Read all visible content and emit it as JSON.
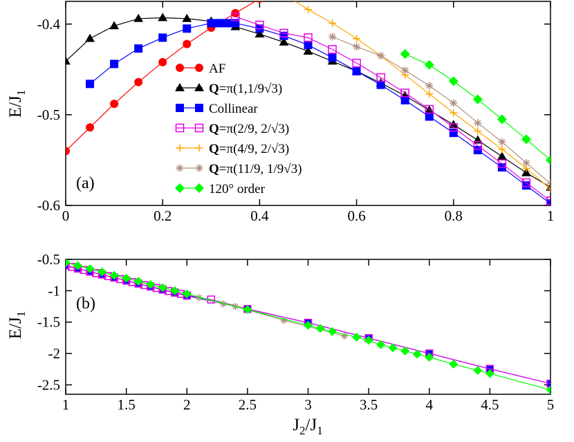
{
  "chart_data": [
    {
      "type": "line",
      "panel_label": "(a)",
      "xlabel": "",
      "ylabel_main": "E/J",
      "ylabel_sub": "1",
      "xlim": [
        0,
        1
      ],
      "ylim": [
        -0.6,
        -0.375
      ],
      "xticks": [
        0,
        0.2,
        0.4,
        0.6,
        0.8,
        1
      ],
      "xtick_labels": [
        "0",
        "0.2",
        "0.4",
        "0.6",
        "0.8",
        "1"
      ],
      "yticks": [
        -0.4,
        -0.5,
        -0.6
      ],
      "ytick_labels": [
        "-0.4",
        "-0.5",
        "-0.6"
      ],
      "legend_placement": "center-left",
      "series": [
        {
          "id": "af",
          "label_bold": "",
          "label_rest": "AF",
          "color": "#ff0000",
          "marker": "circle",
          "fill": true,
          "x": [
            0,
            0.05,
            0.1,
            0.15,
            0.2,
            0.25,
            0.3,
            0.35,
            0.4
          ],
          "y": [
            -0.54,
            -0.514,
            -0.488,
            -0.464,
            -0.442,
            -0.422,
            -0.404,
            -0.388,
            -0.372
          ]
        },
        {
          "id": "q1",
          "label_bold": "Q",
          "label_rest": "=π(1,1/9√3)",
          "color": "#000000",
          "marker": "triangle",
          "fill": true,
          "x": [
            0,
            0.05,
            0.1,
            0.15,
            0.2,
            0.25,
            0.3,
            0.35,
            0.4,
            0.45,
            0.5,
            0.55,
            0.6,
            0.65,
            0.7,
            0.75,
            0.8,
            0.85,
            0.9,
            0.95,
            1
          ],
          "y": [
            -0.441,
            -0.416,
            -0.402,
            -0.394,
            -0.393,
            -0.394,
            -0.397,
            -0.403,
            -0.411,
            -0.42,
            -0.43,
            -0.441,
            -0.452,
            -0.465,
            -0.479,
            -0.495,
            -0.511,
            -0.528,
            -0.546,
            -0.564,
            -0.58
          ]
        },
        {
          "id": "collinear",
          "label_bold": "",
          "label_rest": "Collinear",
          "color": "#0000ff",
          "marker": "square",
          "fill": true,
          "x": [
            0.05,
            0.1,
            0.15,
            0.2,
            0.25,
            0.3,
            0.31,
            0.32,
            0.33,
            0.34,
            0.35,
            0.4,
            0.45,
            0.5,
            0.55,
            0.6,
            0.65,
            0.7,
            0.75,
            0.8,
            0.85,
            0.9,
            0.95,
            1
          ],
          "y": [
            -0.466,
            -0.444,
            -0.427,
            -0.415,
            -0.405,
            -0.399,
            -0.399,
            -0.399,
            -0.399,
            -0.399,
            -0.399,
            -0.405,
            -0.413,
            -0.423,
            -0.437,
            -0.452,
            -0.467,
            -0.484,
            -0.502,
            -0.52,
            -0.539,
            -0.558,
            -0.578,
            -0.598
          ]
        },
        {
          "id": "q2",
          "label_bold": "Q",
          "label_rest": "=π(2/9, 2/√3)",
          "color": "#e600e6",
          "marker": "square-open",
          "fill": false,
          "x": [
            0.35,
            0.4,
            0.45,
            0.5,
            0.55,
            0.6,
            0.65,
            0.7,
            0.75,
            0.8,
            0.85,
            0.9,
            0.95,
            1
          ],
          "y": [
            -0.392,
            -0.401,
            -0.41,
            -0.415,
            -0.428,
            -0.443,
            -0.459,
            -0.476,
            -0.494,
            -0.514,
            -0.534,
            -0.554,
            -0.575,
            -0.595
          ]
        },
        {
          "id": "q3",
          "label_bold": "Q",
          "label_rest": "=π(4/9, 2/√3)",
          "color": "#ffa500",
          "marker": "plus",
          "fill": false,
          "x": [
            0.45,
            0.5,
            0.55,
            0.6,
            0.65,
            0.7,
            0.75,
            0.8,
            0.85,
            0.9,
            0.95,
            1
          ],
          "y": [
            -0.367,
            -0.384,
            -0.399,
            -0.416,
            -0.435,
            -0.456,
            -0.477,
            -0.498,
            -0.518,
            -0.538,
            -0.559,
            -0.582
          ]
        },
        {
          "id": "q4",
          "label_bold": "Q",
          "label_rest": "=π(11/9, 1/9√3)",
          "color": "#b09080",
          "marker": "star",
          "fill": false,
          "x": [
            0.55,
            0.6,
            0.65,
            0.7,
            0.75,
            0.8,
            0.85,
            0.9,
            0.95,
            1
          ],
          "y": [
            -0.414,
            -0.425,
            -0.435,
            -0.451,
            -0.468,
            -0.487,
            -0.509,
            -0.53,
            -0.553,
            -0.576
          ]
        },
        {
          "id": "o120",
          "label_bold": "",
          "label_rest": "120° order",
          "color": "#00ff00",
          "marker": "diamond",
          "fill": true,
          "x": [
            0.7,
            0.75,
            0.8,
            0.85,
            0.9,
            0.95,
            1
          ],
          "y": [
            -0.433,
            -0.445,
            -0.463,
            -0.483,
            -0.505,
            -0.527,
            -0.55
          ]
        }
      ]
    },
    {
      "type": "line",
      "panel_label": "(b)",
      "xlabel_main": "J",
      "xlabel_sub": "2",
      "xlabel_after": "/J",
      "xlabel_sub2": "1",
      "ylabel_main": "E/J",
      "ylabel_sub": "1",
      "xlim": [
        1,
        5
      ],
      "ylim": [
        -2.65,
        -0.5
      ],
      "xticks": [
        1,
        1.5,
        2,
        2.5,
        3,
        3.5,
        4,
        4.5,
        5
      ],
      "xtick_labels": [
        "1",
        "1.5",
        "2",
        "2.5",
        "3",
        "3.5",
        "4",
        "4.5",
        "5"
      ],
      "yticks": [
        -0.5,
        -1,
        -1.5,
        -2,
        -2.5
      ],
      "ytick_labels": [
        "-0.5",
        "-1",
        "-1.5",
        "-2",
        "-2.5"
      ],
      "series": [
        {
          "id": "collinear",
          "color": "#0000ff",
          "marker": "square",
          "fill": true,
          "x": [
            1,
            1.1,
            1.2,
            1.3,
            1.4,
            1.5,
            1.6,
            1.7,
            1.8,
            1.9,
            2,
            2.5,
            3,
            3.5,
            4,
            4.5,
            5
          ],
          "y": [
            -0.6,
            -0.648,
            -0.696,
            -0.744,
            -0.792,
            -0.84,
            -0.888,
            -0.936,
            -0.984,
            -1.032,
            -1.08,
            -1.29,
            -1.51,
            -1.755,
            -2.0,
            -2.245,
            -2.48
          ]
        },
        {
          "id": "q2",
          "color": "#e600e6",
          "marker": "square-open",
          "fill": false,
          "x": [
            1,
            1.05,
            1.1,
            1.15,
            1.2,
            1.25,
            1.3,
            1.35,
            1.4,
            1.45,
            1.5,
            1.55,
            1.6,
            1.65,
            1.7,
            1.75,
            1.8,
            1.85,
            1.9,
            1.95,
            2,
            2.2,
            2.5,
            3,
            3.5,
            4,
            4.5,
            5
          ],
          "y": [
            -0.595,
            -0.62,
            -0.645,
            -0.67,
            -0.693,
            -0.718,
            -0.741,
            -0.766,
            -0.79,
            -0.814,
            -0.837,
            -0.861,
            -0.885,
            -0.909,
            -0.932,
            -0.956,
            -0.98,
            -1.004,
            -1.027,
            -1.05,
            -1.075,
            -1.14,
            -1.29,
            -1.51,
            -1.755,
            -2.0,
            -2.245,
            -2.48
          ]
        },
        {
          "id": "q4",
          "color": "#b09080",
          "marker": "star",
          "fill": false,
          "x": [
            2.1,
            2.3,
            2.4,
            2.8,
            3.3
          ],
          "y": [
            -1.11,
            -1.21,
            -1.25,
            -1.47,
            -1.72
          ]
        },
        {
          "id": "o120",
          "color": "#00ff00",
          "marker": "diamond",
          "fill": true,
          "x": [
            1,
            1.1,
            1.2,
            1.3,
            1.4,
            1.5,
            1.6,
            1.7,
            1.8,
            1.9,
            2,
            2.5,
            3,
            3.1,
            3.2,
            3.4,
            3.5,
            3.6,
            3.7,
            3.8,
            3.9,
            4,
            4.2,
            4.4,
            4.5,
            5
          ],
          "y": [
            -0.55,
            -0.6,
            -0.65,
            -0.7,
            -0.755,
            -0.8,
            -0.85,
            -0.9,
            -0.95,
            -1.0,
            -1.05,
            -1.3,
            -1.55,
            -1.6,
            -1.65,
            -1.74,
            -1.79,
            -1.86,
            -1.91,
            -1.96,
            -2.01,
            -2.06,
            -2.17,
            -2.27,
            -2.32,
            -2.58
          ]
        }
      ]
    }
  ]
}
